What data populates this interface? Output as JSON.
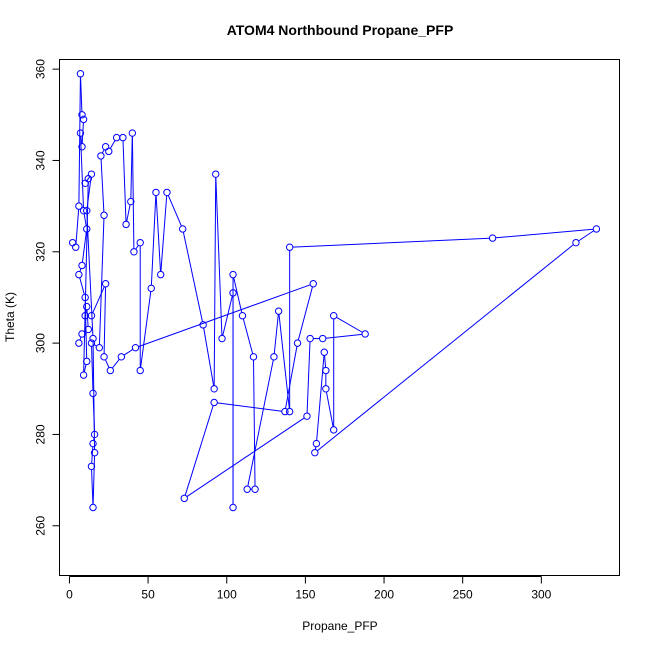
{
  "chart_data": {
    "type": "line",
    "title": "ATOM4 Northbound Propane_PFP",
    "xlabel": "Propane_PFP",
    "ylabel": "Theta (K)",
    "xlim": [
      -6,
      350
    ],
    "ylim": [
      249,
      362
    ],
    "x_ticks": [
      0,
      50,
      100,
      150,
      200,
      250,
      300
    ],
    "y_ticks": [
      260,
      280,
      300,
      320,
      340,
      360
    ],
    "grid": false,
    "legend": "none",
    "markers": "open-circle",
    "color": "#0000ff",
    "series": [
      {
        "points": [
          [
            2,
            322
          ],
          [
            4,
            321
          ],
          [
            6,
            330
          ],
          [
            7,
            359
          ],
          [
            8,
            350
          ],
          [
            9,
            349
          ],
          [
            8,
            343
          ],
          [
            7,
            346
          ],
          [
            9,
            329
          ],
          [
            11,
            325
          ],
          [
            8,
            317
          ],
          [
            6,
            315
          ],
          [
            10,
            310
          ],
          [
            11,
            296
          ],
          [
            9,
            293
          ],
          [
            12,
            336
          ],
          [
            10,
            335
          ],
          [
            14,
            337
          ],
          [
            11,
            329
          ],
          [
            15,
            301
          ],
          [
            16,
            276
          ],
          [
            15,
            264
          ],
          [
            14,
            273
          ],
          [
            15,
            278
          ],
          [
            16,
            280
          ],
          [
            15,
            289
          ],
          [
            14,
            300
          ],
          [
            19,
            299
          ],
          [
            22,
            328
          ],
          [
            20,
            341
          ],
          [
            23,
            343
          ],
          [
            25,
            342
          ],
          [
            30,
            345
          ],
          [
            34,
            345
          ],
          [
            36,
            326
          ],
          [
            39,
            331
          ],
          [
            40,
            346
          ],
          [
            41,
            320
          ],
          [
            45,
            322
          ],
          [
            45,
            294
          ],
          [
            52,
            312
          ],
          [
            55,
            333
          ],
          [
            58,
            315
          ],
          [
            62,
            333
          ],
          [
            72,
            325
          ],
          [
            85,
            304
          ],
          [
            92,
            290
          ],
          [
            93,
            337
          ],
          [
            97,
            301
          ],
          [
            104,
            311
          ],
          [
            104,
            264
          ],
          [
            104,
            315
          ],
          [
            110,
            306
          ],
          [
            117,
            297
          ],
          [
            118,
            268
          ],
          [
            113,
            268
          ],
          [
            130,
            297
          ],
          [
            133,
            307
          ],
          [
            140,
            285
          ],
          [
            140,
            321
          ],
          [
            269,
            323
          ],
          [
            335,
            325
          ],
          [
            322,
            322
          ],
          [
            156,
            276
          ],
          [
            157,
            278
          ],
          [
            162,
            298
          ],
          [
            163,
            294
          ],
          [
            163,
            290
          ],
          [
            168,
            281
          ],
          [
            168,
            306
          ],
          [
            188,
            302
          ],
          [
            161,
            301
          ],
          [
            153,
            301
          ],
          [
            151,
            284
          ],
          [
            73,
            266
          ],
          [
            92,
            287
          ],
          [
            137,
            285
          ],
          [
            145,
            300
          ],
          [
            155,
            313
          ],
          [
            42,
            299
          ],
          [
            33,
            297
          ],
          [
            26,
            294
          ],
          [
            22,
            297
          ],
          [
            23,
            313
          ],
          [
            14,
            306
          ],
          [
            10,
            306
          ],
          [
            11,
            308
          ],
          [
            12,
            303
          ],
          [
            8,
            302
          ],
          [
            6,
            300
          ]
        ]
      }
    ]
  }
}
